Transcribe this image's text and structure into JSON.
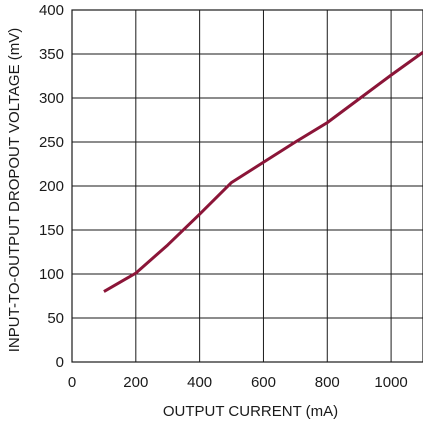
{
  "chart_data": {
    "type": "line",
    "xlabel": "OUTPUT CURRENT (mA)",
    "ylabel": "INPUT-TO-OUTPUT DROPOUT VOLTAGE (mV)",
    "xlim": [
      0,
      1100
    ],
    "ylim": [
      0,
      400
    ],
    "x_ticks": [
      0,
      200,
      400,
      600,
      800,
      1000
    ],
    "y_ticks": [
      0,
      50,
      100,
      150,
      200,
      250,
      300,
      350,
      400
    ],
    "x_tick_labels": [
      "0",
      "200",
      "400",
      "600",
      "800",
      "1000"
    ],
    "y_tick_labels": [
      "0",
      "50",
      "100",
      "150",
      "200",
      "250",
      "300",
      "350",
      "400"
    ],
    "x_grid": [
      200,
      400,
      600,
      800,
      1000
    ],
    "grid": true,
    "series": [
      {
        "color": "#8b1538",
        "points": [
          {
            "x": 100,
            "y": 80
          },
          {
            "x": 200,
            "y": 101
          },
          {
            "x": 300,
            "y": 133
          },
          {
            "x": 400,
            "y": 168
          },
          {
            "x": 500,
            "y": 204
          },
          {
            "x": 600,
            "y": 227
          },
          {
            "x": 700,
            "y": 250
          },
          {
            "x": 800,
            "y": 272
          },
          {
            "x": 900,
            "y": 299
          },
          {
            "x": 1000,
            "y": 326
          },
          {
            "x": 1100,
            "y": 352
          }
        ]
      }
    ]
  }
}
